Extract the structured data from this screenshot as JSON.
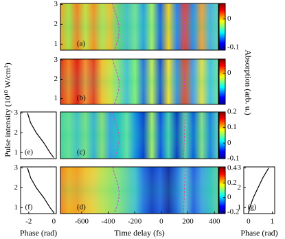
{
  "chart_data": [
    {
      "type": "heatmap",
      "panel_label": "(a)",
      "xlim": [
        -760,
        430
      ],
      "ylim": [
        0.7,
        3.05
      ],
      "yticks": [
        3,
        2,
        1
      ],
      "clim": [
        -0.11,
        0.055
      ],
      "cticks": [
        0,
        -0.1
      ]
    },
    {
      "type": "heatmap",
      "panel_label": "(b)",
      "xlim": [
        -760,
        430
      ],
      "ylim": [
        0.7,
        3.05
      ],
      "yticks": [
        3,
        2,
        1
      ],
      "clim": [
        -0.11,
        0.05
      ],
      "cticks": [
        0
      ],
      "colorbar_label": "Absorption (arb. u.)"
    },
    {
      "type": "heatmap",
      "panel_label": "(c)",
      "xlim": [
        -760,
        430
      ],
      "ylim": [
        0.7,
        3.05
      ],
      "clim": [
        -0.1,
        0.2
      ],
      "cticks": [
        0.2,
        0.1,
        0,
        -0.1
      ]
    },
    {
      "type": "heatmap",
      "panel_label": "(d)",
      "xlim": [
        -760,
        430
      ],
      "ylim": [
        0.7,
        3.05
      ],
      "xticks": [
        -600,
        -400,
        -200,
        0,
        200,
        400
      ],
      "xlabel": "Time delay (fs)",
      "clim": [
        -0.22,
        0.42
      ],
      "cticks": [
        0.4,
        0.2,
        0,
        -0.2
      ]
    },
    {
      "type": "line",
      "panel_label": "(e)",
      "xlim": [
        -2.65,
        0.2
      ],
      "ylim": [
        0.7,
        3.05
      ],
      "yticks": [
        3,
        2,
        1
      ],
      "ylabel": "Pulse intensity (10¹⁰ W/cm²)",
      "color": "#000000",
      "x": [
        0,
        -0.3,
        -0.8,
        -1.4,
        -1.85,
        -2.1
      ],
      "y": [
        0.75,
        1,
        1.5,
        2,
        2.5,
        3
      ]
    },
    {
      "type": "line",
      "panel_label": "(f)",
      "xlim": [
        -2.65,
        0.2
      ],
      "ylim": [
        0.7,
        3.05
      ],
      "yticks": [
        3,
        2,
        1
      ],
      "xticks": [
        -2,
        0
      ],
      "xlabel": "Phase (rad)",
      "color": "#000000",
      "x": [
        0,
        -0.3,
        -0.8,
        -1.4,
        -1.85,
        -2.1
      ],
      "y": [
        0.75,
        1,
        1.5,
        2,
        2.5,
        3
      ]
    },
    {
      "type": "line",
      "panel_label": "(g)",
      "xlim": [
        -0.2,
        1.1
      ],
      "ylim": [
        0.7,
        3.05
      ],
      "yticks": [
        3,
        2,
        1
      ],
      "xticks": [
        0,
        1
      ],
      "xlabel": "Phase (rad)",
      "color": "#000000",
      "x": [
        0,
        0.05,
        0.2,
        0.4,
        0.6,
        0.85
      ],
      "y": [
        0.75,
        1,
        1.5,
        2,
        2.5,
        3
      ]
    }
  ]
}
